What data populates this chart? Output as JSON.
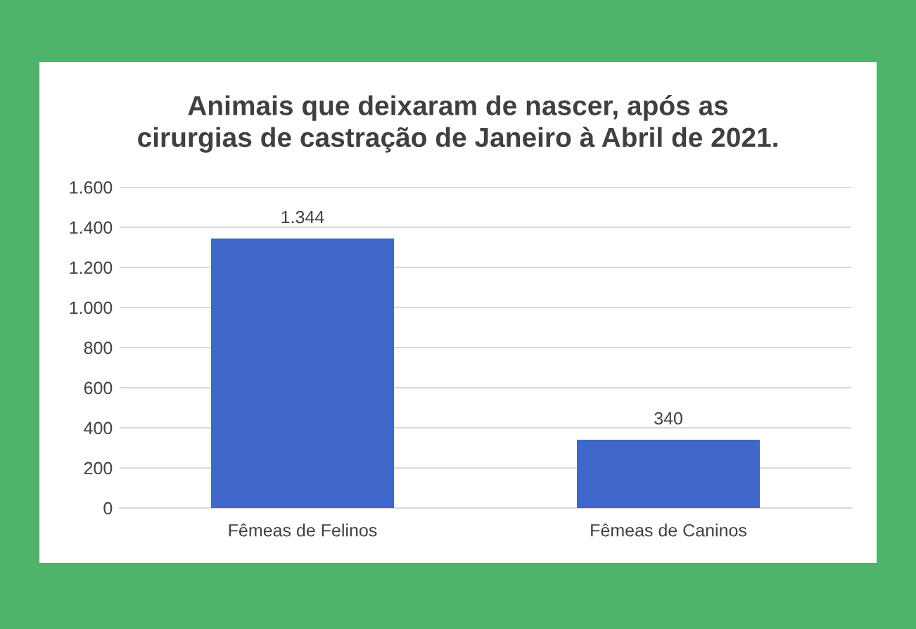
{
  "chart_data": {
    "type": "bar",
    "title": "Animais que deixaram de nascer, após as\ncirurgias de castração de Janeiro à Abril de 2021.",
    "categories": [
      "Fêmeas de Felinos",
      "Fêmeas de Caninos"
    ],
    "values": [
      1344,
      340
    ],
    "value_labels": [
      "1.344",
      "340"
    ],
    "color": "#3f67c9",
    "ylim": [
      0,
      1600
    ],
    "yticks": [
      {
        "value": 0,
        "label": "0"
      },
      {
        "value": 200,
        "label": "200"
      },
      {
        "value": 400,
        "label": "400"
      },
      {
        "value": 600,
        "label": "600"
      },
      {
        "value": 800,
        "label": "800"
      },
      {
        "value": 1000,
        "label": "1.000"
      },
      {
        "value": 1200,
        "label": "1.200"
      },
      {
        "value": 1400,
        "label": "1.400"
      },
      {
        "value": 1600,
        "label": "1.600"
      }
    ],
    "grid": "y",
    "legend": false
  }
}
